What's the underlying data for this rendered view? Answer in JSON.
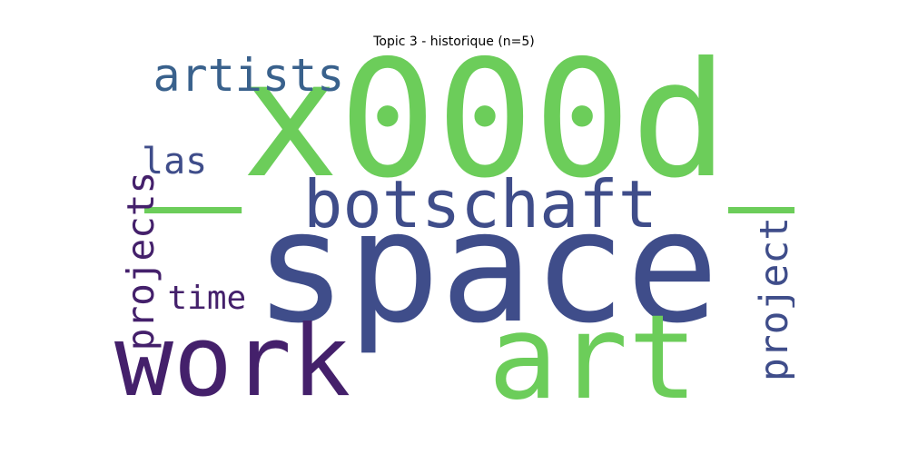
{
  "figure": {
    "title": "Topic 3 - historique (n=5)"
  },
  "wordcloud": {
    "words": [
      {
        "text": "_x000d_",
        "color": "#6ccd5a",
        "rotated": false,
        "rank": 1
      },
      {
        "text": "space",
        "color": "#3f4d8a",
        "rotated": false,
        "rank": 2
      },
      {
        "text": "art",
        "color": "#6ccd5a",
        "rotated": false,
        "rank": 3
      },
      {
        "text": "work",
        "color": "#44206b",
        "rotated": false,
        "rank": 4
      },
      {
        "text": "botschaft",
        "color": "#3f4d8a",
        "rotated": false,
        "rank": 5
      },
      {
        "text": "artists",
        "color": "#39618c",
        "rotated": false,
        "rank": 6
      },
      {
        "text": "project",
        "color": "#3f4d8a",
        "rotated": true,
        "rank": 7
      },
      {
        "text": "projects",
        "color": "#44206b",
        "rotated": true,
        "rank": 8
      },
      {
        "text": "las",
        "color": "#3f4d8a",
        "rotated": false,
        "rank": 9
      },
      {
        "text": "time",
        "color": "#44206b",
        "rotated": false,
        "rank": 10
      }
    ]
  }
}
